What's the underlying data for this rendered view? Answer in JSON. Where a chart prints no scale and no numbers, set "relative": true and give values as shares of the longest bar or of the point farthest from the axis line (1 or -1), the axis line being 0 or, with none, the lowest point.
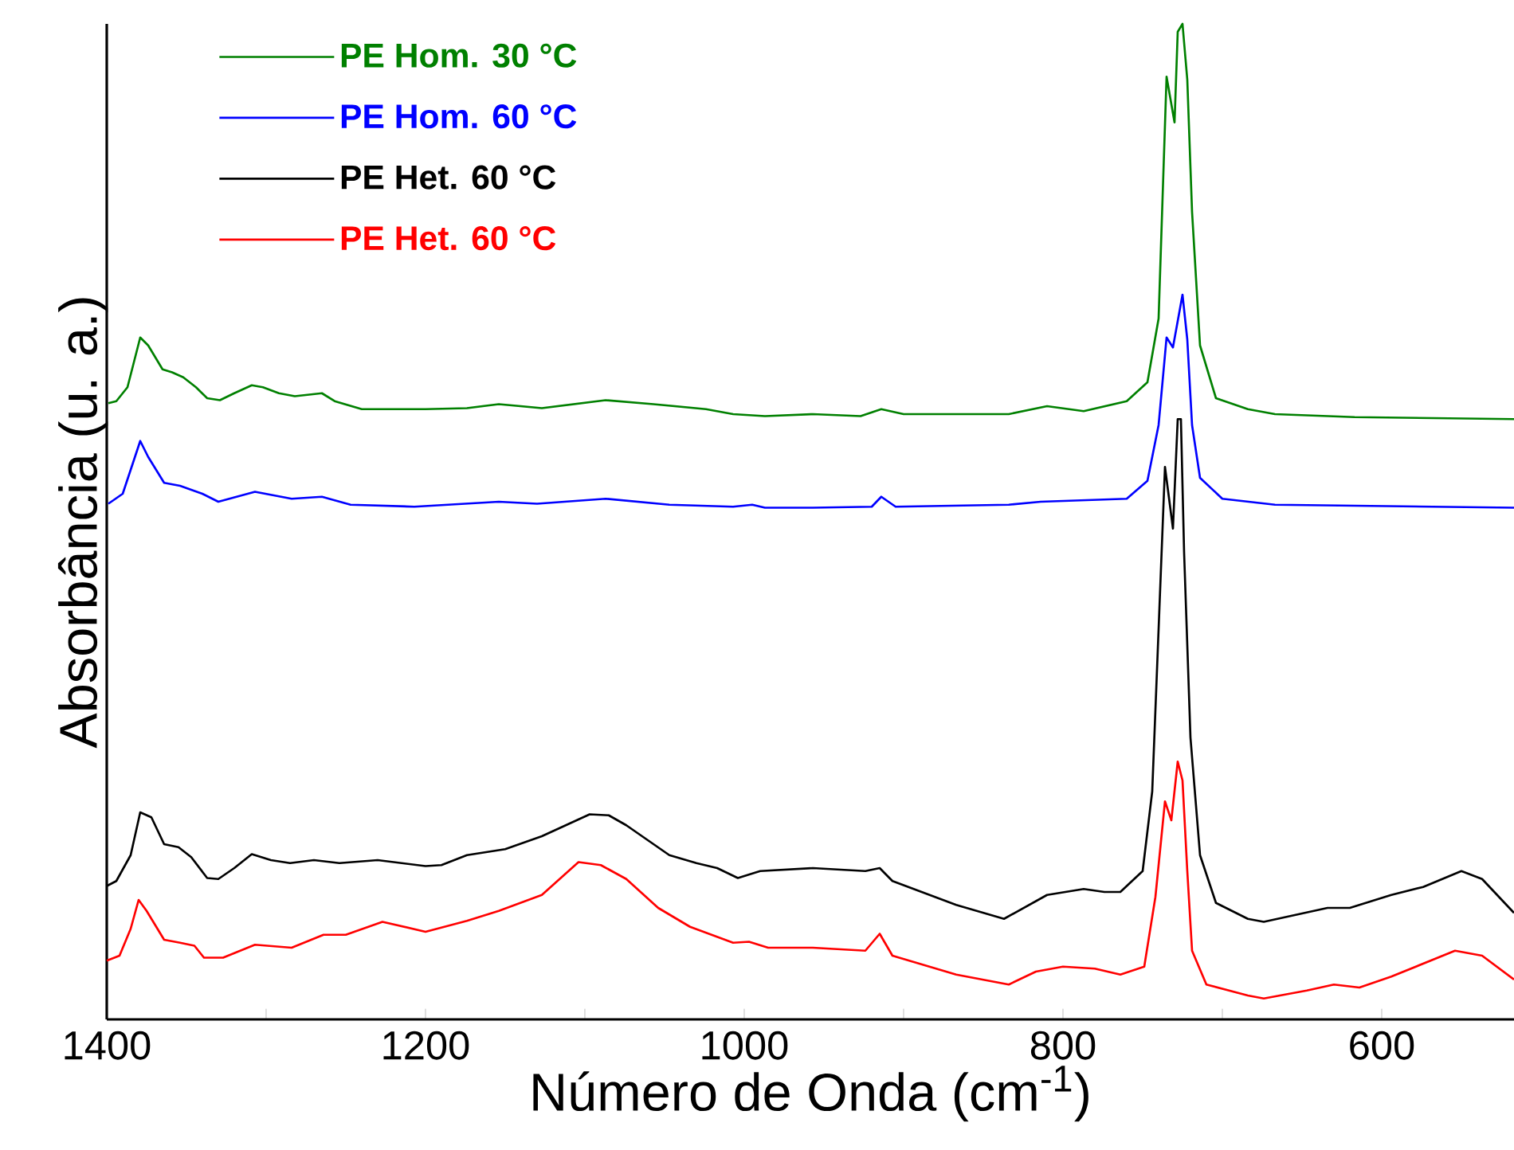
{
  "chart_data": {
    "type": "line",
    "relative": true,
    "xlabel": "Número de Onda (cm$^{-1}$)",
    "ylabel": "Absorbância (u. a.)",
    "xlim": [
      1400,
      517
    ],
    "xticks": [
      1400,
      {
        "value": 1300,
        "label": null
      },
      1200,
      {
        "value": 1100,
        "label": null
      },
      1000,
      {
        "value": 900,
        "label": null
      },
      800,
      {
        "value": 700,
        "label": null
      },
      600
    ],
    "tick_labels": "x",
    "legend": "top left",
    "line_style": "solid",
    "marker": "none",
    "series": [
      {
        "name": "PE Hom. 30 °C",
        "color": "#008000",
        "x": [
          1399,
          1394,
          1387,
          1379,
          1374,
          1365,
          1359,
          1352,
          1344,
          1337,
          1329,
          1320,
          1309,
          1302,
          1292,
          1282,
          1265,
          1257,
          1240,
          1200,
          1174,
          1154,
          1127,
          1087,
          1057,
          1024,
          1007,
          987,
          957,
          927,
          914,
          900,
          834,
          810,
          787,
          760,
          747,
          740,
          735,
          730,
          728,
          725,
          722,
          719,
          714,
          704,
          684,
          667,
          617,
          517
        ],
        "values": [
          0.619,
          0.621,
          0.635,
          0.685,
          0.677,
          0.653,
          0.65,
          0.645,
          0.635,
          0.624,
          0.622,
          0.629,
          0.637,
          0.635,
          0.629,
          0.626,
          0.629,
          0.621,
          0.613,
          0.613,
          0.614,
          0.618,
          0.614,
          0.622,
          0.618,
          0.613,
          0.608,
          0.606,
          0.608,
          0.606,
          0.613,
          0.608,
          0.608,
          0.616,
          0.611,
          0.621,
          0.64,
          0.704,
          0.947,
          0.901,
          0.992,
          1.0,
          0.944,
          0.811,
          0.677,
          0.624,
          0.613,
          0.608,
          0.605,
          0.603
        ]
      },
      {
        "name": "PE Hom. 60 °C",
        "color": "#0000ff",
        "x": [
          1399,
          1390,
          1379,
          1374,
          1364,
          1354,
          1340,
          1330,
          1307,
          1284,
          1265,
          1247,
          1207,
          1154,
          1130,
          1087,
          1047,
          1007,
          995,
          987,
          957,
          920,
          914,
          905,
          834,
          814,
          760,
          747,
          740,
          735,
          731,
          725,
          722,
          719,
          714,
          700,
          667,
          517
        ],
        "values": [
          0.518,
          0.528,
          0.581,
          0.565,
          0.539,
          0.536,
          0.528,
          0.52,
          0.53,
          0.523,
          0.525,
          0.517,
          0.515,
          0.52,
          0.518,
          0.523,
          0.517,
          0.515,
          0.517,
          0.514,
          0.514,
          0.515,
          0.525,
          0.515,
          0.517,
          0.52,
          0.523,
          0.541,
          0.597,
          0.685,
          0.675,
          0.728,
          0.683,
          0.597,
          0.544,
          0.523,
          0.517,
          0.514
        ]
      },
      {
        "name": "PE Het. 60 °C",
        "color": "#000000",
        "x": [
          1400,
          1394,
          1385,
          1379,
          1372,
          1364,
          1355,
          1347,
          1337,
          1330,
          1320,
          1309,
          1297,
          1285,
          1270,
          1254,
          1230,
          1200,
          1190,
          1174,
          1150,
          1127,
          1097,
          1085,
          1074,
          1047,
          1030,
          1017,
          1004,
          990,
          957,
          924,
          915,
          907,
          867,
          837,
          810,
          787,
          774,
          764,
          750,
          744,
          736,
          731,
          728,
          726,
          724,
          720,
          714,
          704,
          684,
          674,
          634,
          620,
          594,
          574,
          550,
          537,
          517
        ],
        "values": [
          0.134,
          0.139,
          0.165,
          0.208,
          0.203,
          0.176,
          0.173,
          0.163,
          0.142,
          0.141,
          0.152,
          0.166,
          0.16,
          0.157,
          0.16,
          0.157,
          0.16,
          0.154,
          0.155,
          0.165,
          0.171,
          0.184,
          0.206,
          0.205,
          0.195,
          0.165,
          0.157,
          0.152,
          0.142,
          0.149,
          0.152,
          0.149,
          0.152,
          0.139,
          0.115,
          0.101,
          0.125,
          0.131,
          0.128,
          0.128,
          0.149,
          0.229,
          0.555,
          0.493,
          0.603,
          0.603,
          0.469,
          0.283,
          0.165,
          0.117,
          0.101,
          0.098,
          0.112,
          0.112,
          0.125,
          0.133,
          0.149,
          0.141,
          0.107
        ]
      },
      {
        "name": "PE Het. 60 °C",
        "color": "#ff0000",
        "x": [
          1400,
          1392,
          1385,
          1380,
          1375,
          1364,
          1354,
          1345,
          1339,
          1327,
          1307,
          1284,
          1264,
          1250,
          1227,
          1200,
          1174,
          1154,
          1127,
          1104,
          1090,
          1074,
          1054,
          1034,
          1007,
          997,
          985,
          957,
          924,
          915,
          907,
          867,
          834,
          817,
          800,
          780,
          764,
          749,
          742,
          736,
          732,
          728,
          725,
          722,
          719,
          710,
          684,
          674,
          647,
          630,
          614,
          594,
          554,
          537,
          517
        ],
        "values": [
          0.059,
          0.064,
          0.091,
          0.12,
          0.109,
          0.08,
          0.077,
          0.074,
          0.062,
          0.062,
          0.075,
          0.072,
          0.085,
          0.085,
          0.098,
          0.088,
          0.099,
          0.109,
          0.125,
          0.158,
          0.155,
          0.141,
          0.112,
          0.093,
          0.077,
          0.078,
          0.072,
          0.072,
          0.069,
          0.086,
          0.064,
          0.045,
          0.035,
          0.048,
          0.053,
          0.051,
          0.045,
          0.053,
          0.123,
          0.219,
          0.2,
          0.259,
          0.24,
          0.149,
          0.069,
          0.035,
          0.024,
          0.021,
          0.029,
          0.035,
          0.032,
          0.043,
          0.069,
          0.064,
          0.04
        ]
      }
    ]
  }
}
